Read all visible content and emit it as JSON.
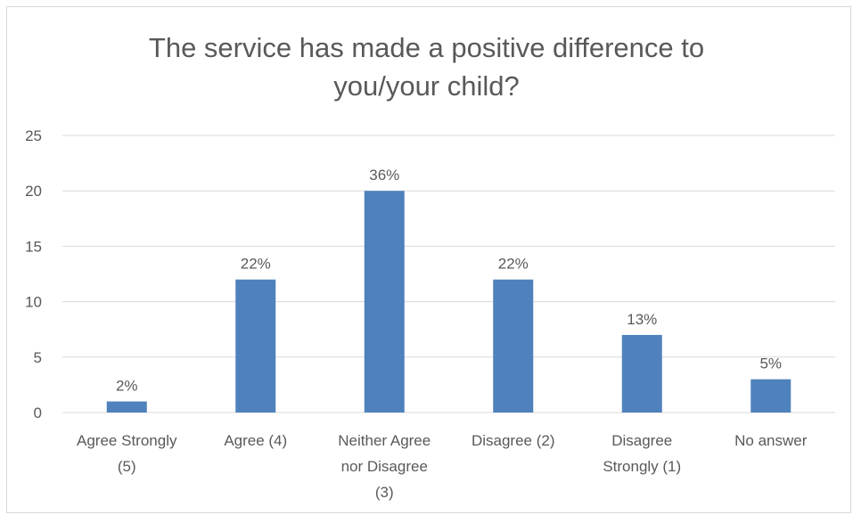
{
  "chart_data": {
    "type": "bar",
    "title_lines": [
      "The service has made a positive difference to",
      "you/your child?"
    ],
    "categories": [
      [
        "Agree Strongly",
        "(5)"
      ],
      [
        "Agree (4)"
      ],
      [
        "Neither Agree",
        "nor Disagree",
        "(3)"
      ],
      [
        "Disagree (2)"
      ],
      [
        "Disagree",
        "Strongly (1)"
      ],
      [
        "No answer"
      ]
    ],
    "values": [
      1,
      12,
      20,
      12,
      7,
      3
    ],
    "data_labels": [
      "2%",
      "22%",
      "36%",
      "22%",
      "13%",
      "5%"
    ],
    "yticks": [
      "0",
      "5",
      "10",
      "15",
      "20",
      "25"
    ],
    "ylim": [
      0,
      25
    ],
    "grid": true,
    "bar_color": "#4f81bd",
    "grid_color": "#d9d9d9"
  }
}
